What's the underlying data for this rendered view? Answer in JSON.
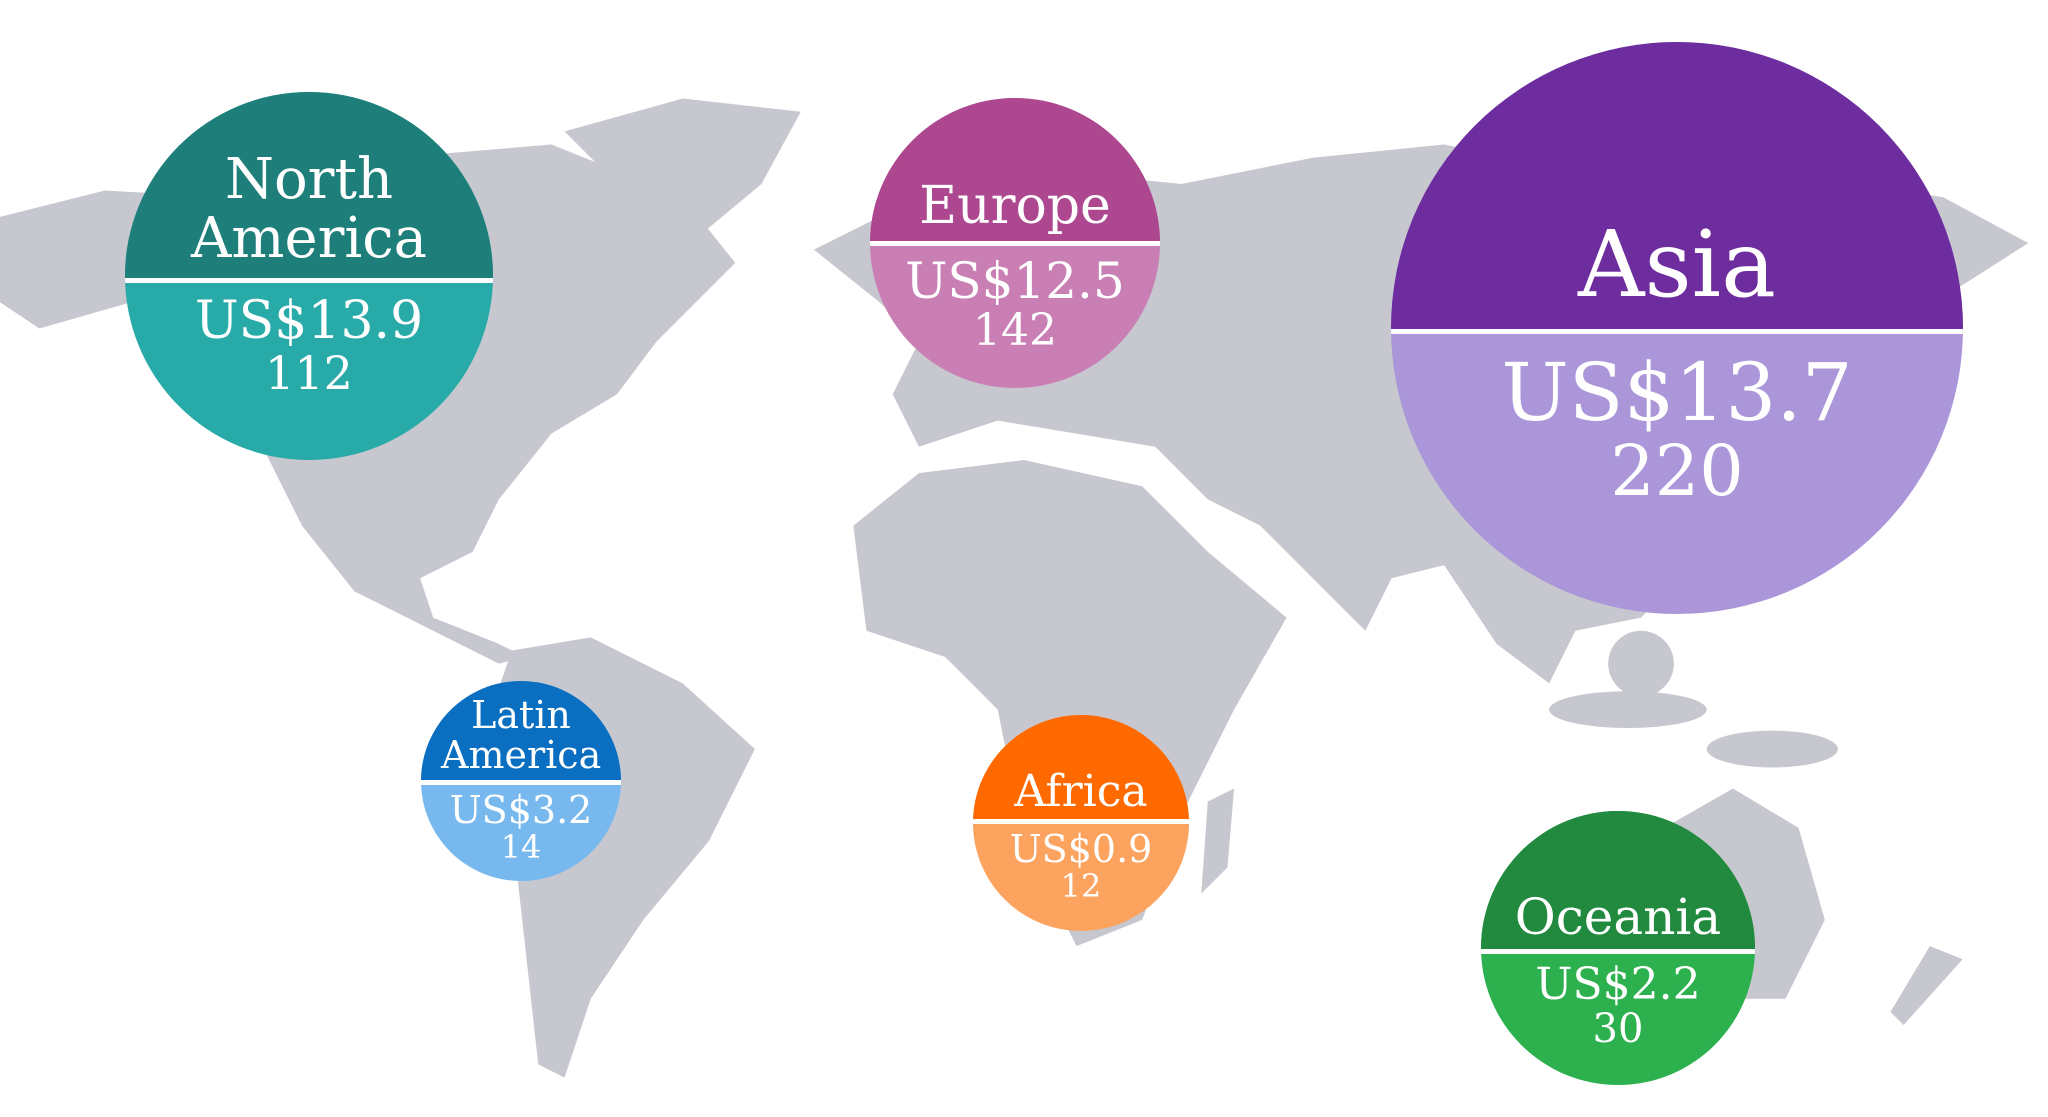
{
  "map": {
    "land_color": "#c6c7cf",
    "background": "#ffffff"
  },
  "regions": [
    {
      "name": "North America",
      "value": "US$13.9",
      "count": "112",
      "top_color": "#1e7f7a",
      "bottom_color": "#27aaa8"
    },
    {
      "name": "Europe",
      "value": "US$12.5",
      "count": "142",
      "top_color": "#ad478f",
      "bottom_color": "#c97fb3"
    },
    {
      "name": "Asia",
      "value": "US$13.7",
      "count": "220",
      "top_color": "#6e2d9e",
      "bottom_color": "#aa96d8"
    },
    {
      "name": "Latin America",
      "value": "US$3.2",
      "count": "14",
      "top_color": "#0b6fc1",
      "bottom_color": "#77b9ee"
    },
    {
      "name": "Africa",
      "value": "US$0.9",
      "count": "12",
      "top_color": "#ff6a00",
      "bottom_color": "#fca45f"
    },
    {
      "name": "Oceania",
      "value": "US$2.2",
      "count": "30",
      "top_color": "#218a3e",
      "bottom_color": "#2db14f"
    }
  ]
}
